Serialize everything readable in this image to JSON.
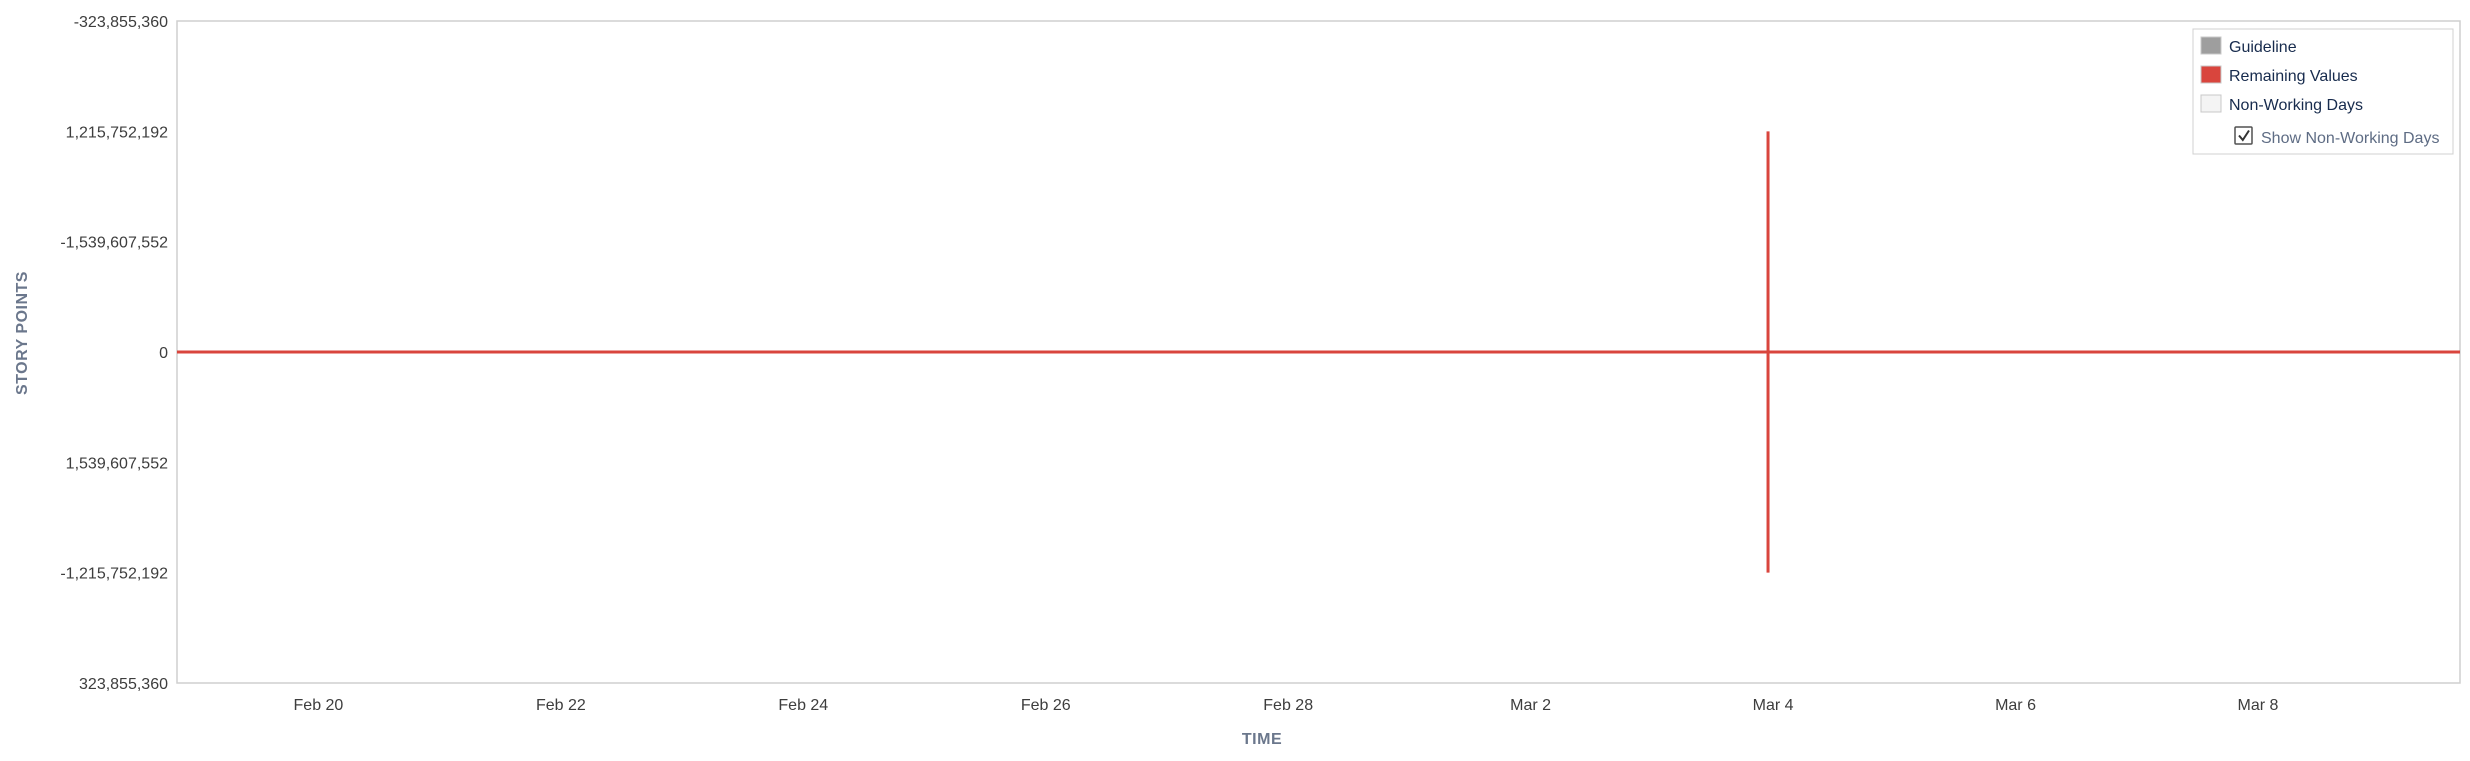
{
  "chart_data": {
    "type": "line",
    "xlabel": "TIME",
    "ylabel": "STORY POINTS",
    "x_tick_labels": [
      "Feb 20",
      "Feb 22",
      "Feb 24",
      "Feb 26",
      "Feb 28",
      "Mar 2",
      "Mar 4",
      "Mar 6",
      "Mar 8"
    ],
    "y_tick_labels": [
      "-323,855,360",
      "1,215,752,192",
      "-1,539,607,552",
      "0",
      "1,539,607,552",
      "-1,215,752,192",
      "323,855,360"
    ],
    "xlim": [
      "2023-02-18 20:00",
      "2023-03-09 16:00"
    ],
    "ylim": [
      -3,
      3
    ],
    "grid": false,
    "legend_position": "top-right",
    "legend": [
      {
        "label": "Guideline",
        "color": "#9e9e9e"
      },
      {
        "label": "Remaining Values",
        "color": "#d9453d"
      },
      {
        "label": "Non-Working Days",
        "color": "#f4f4f4"
      }
    ],
    "show_non_working_days": {
      "label": "Show Non-Working Days",
      "checked": true
    },
    "series": [
      {
        "name": "Remaining Values",
        "color": "#d9453d",
        "points": [
          {
            "x": "2023-02-18 20:00",
            "y": 0
          },
          {
            "x": "2023-03-03 23:00",
            "y": 0
          },
          {
            "x": "2023-03-03 23:00",
            "y": 2
          },
          {
            "x": "2023-03-03 23:00",
            "y": -2
          },
          {
            "x": "2023-03-03 23:00",
            "y": 0
          },
          {
            "x": "2023-03-09 16:00",
            "y": 0
          }
        ]
      }
    ]
  }
}
